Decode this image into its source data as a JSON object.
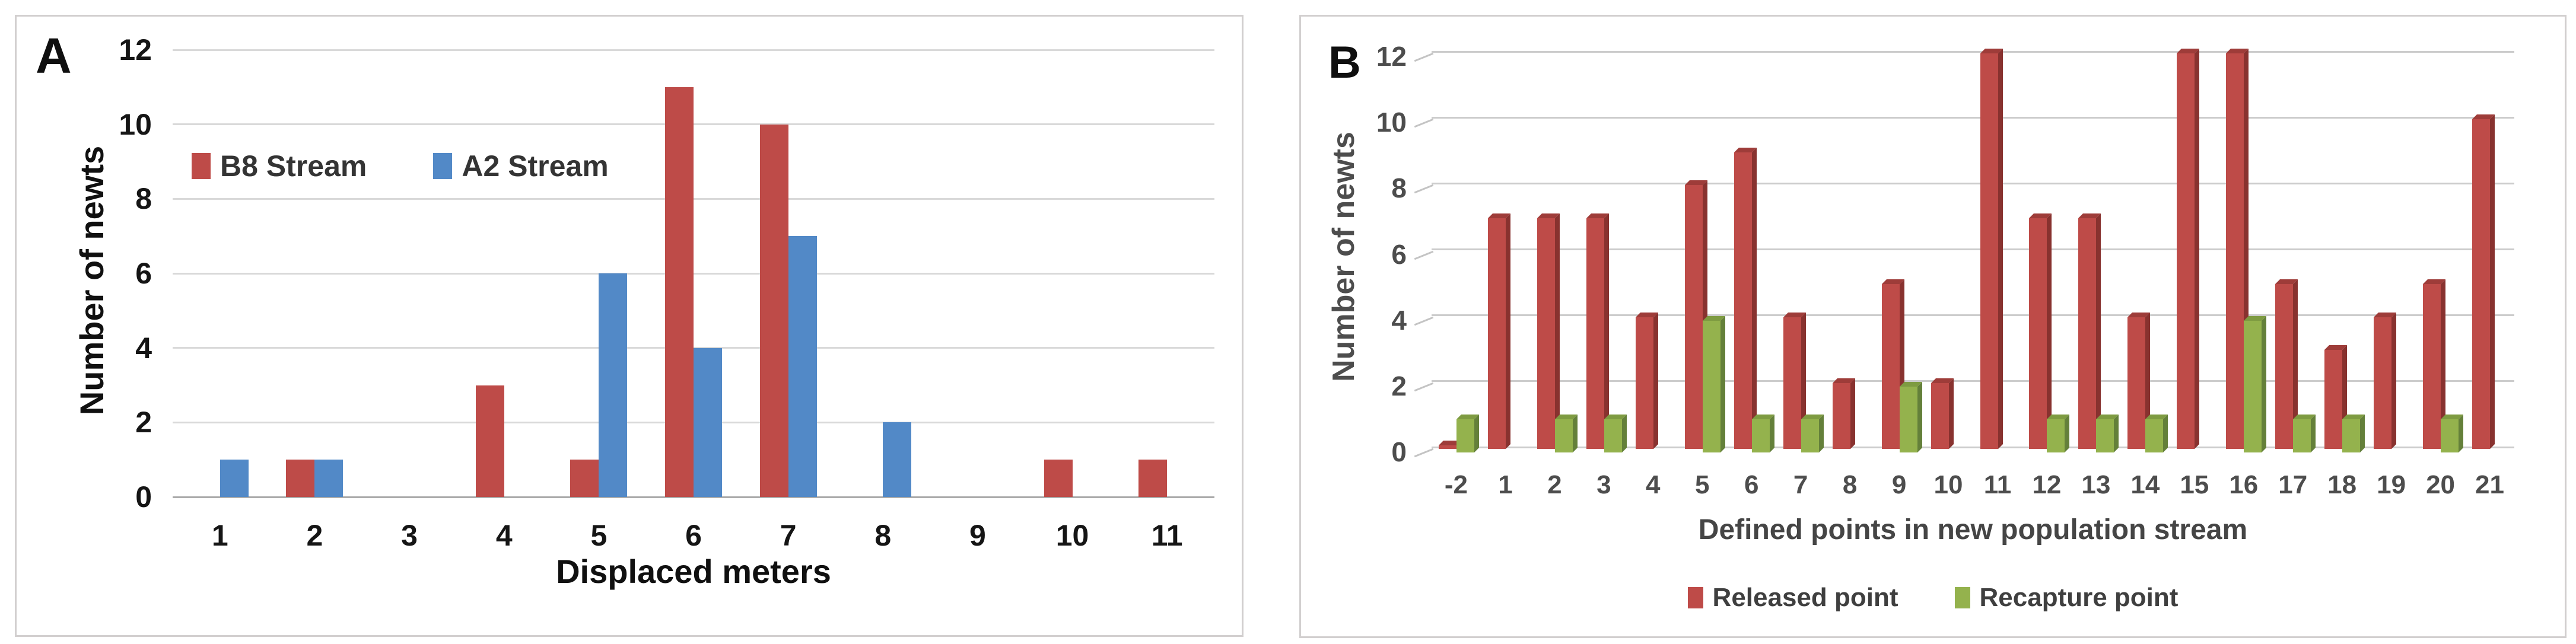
{
  "figure": {
    "background": "#ffffff",
    "panel_border_color": "#d2cfcf"
  },
  "styles": {
    "grid_color_a": "#d9d9d9",
    "axis_line_a": "#ababab",
    "grid_color_b": "#cccccc",
    "kick_color_b": "#c4c4c4"
  },
  "chart_data": [
    {
      "type": "bar",
      "panel_label": "A",
      "title": "",
      "xlabel": "Displaced meters",
      "ylabel": "Number of newts",
      "ylim": [
        0,
        12
      ],
      "ytick_step": 2,
      "grid": true,
      "legend_position": "inside-top-left",
      "categories": [
        "1",
        "2",
        "3",
        "4",
        "5",
        "6",
        "7",
        "8",
        "9",
        "10",
        "11"
      ],
      "series": [
        {
          "name": "B8 Stream",
          "color": "#BE4B48",
          "values": [
            0,
            1,
            0,
            3,
            1,
            11,
            10,
            0,
            0,
            1,
            1
          ]
        },
        {
          "name": "A2 Stream",
          "color": "#5289C7",
          "values": [
            1,
            1,
            0,
            0,
            6,
            4,
            7,
            2,
            0,
            0,
            0
          ]
        }
      ]
    },
    {
      "type": "bar-3d",
      "panel_label": "B",
      "title": "",
      "xlabel": "Defined points in new population stream",
      "ylabel": "Number of newts",
      "ylim": [
        0,
        12
      ],
      "ytick_step": 2,
      "grid": true,
      "legend_position": "bottom-center",
      "categories": [
        "-2",
        "1",
        "2",
        "3",
        "4",
        "5",
        "6",
        "7",
        "8",
        "9",
        "10",
        "11",
        "12",
        "13",
        "14",
        "15",
        "16",
        "17",
        "18",
        "19",
        "20",
        "21"
      ],
      "series": [
        {
          "name": "Released point",
          "color": "#BE4B48",
          "side_color": "#88322F",
          "top_color": "#9E3C39",
          "values": [
            0,
            7,
            7,
            7,
            4,
            8,
            9,
            4,
            2,
            5,
            2,
            12,
            7,
            7,
            4,
            12,
            12,
            5,
            3,
            4,
            5,
            10
          ]
        },
        {
          "name": "Recapture point",
          "color": "#94B24D",
          "side_color": "#64803A",
          "top_color": "#7E9B41",
          "values": [
            1,
            0,
            1,
            1,
            0,
            4,
            1,
            1,
            0,
            2,
            0,
            0,
            1,
            1,
            1,
            0,
            4,
            1,
            1,
            0,
            1,
            0
          ]
        }
      ]
    }
  ]
}
